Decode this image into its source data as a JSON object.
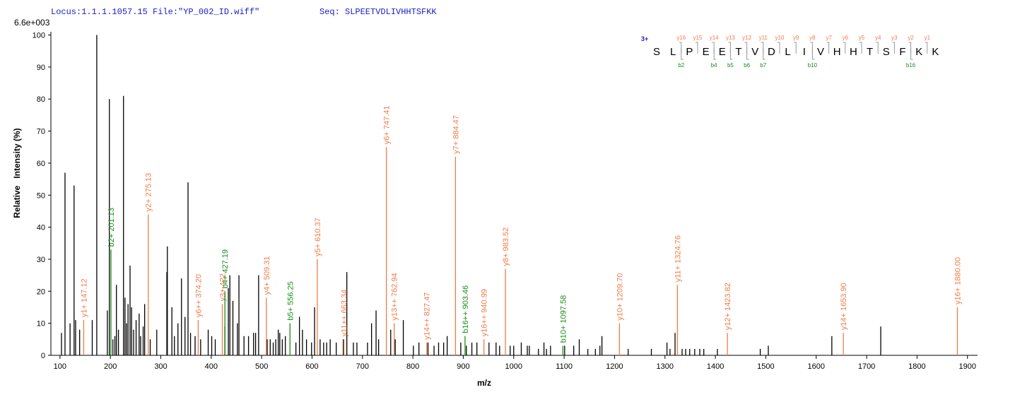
{
  "chart_data": {
    "type": "spectrum",
    "header": {
      "locus": "Locus:1.1.1.1057.15 File:\"YP_002_ID.wiff\"",
      "seq": "Seq: SLPEETVDLIVHHTSFKK",
      "scale": "6.6e+003"
    },
    "ylabel": "Relative   Intensity (%)",
    "xlabel": "m/z",
    "xlim": [
      82,
      1920
    ],
    "ylim": [
      0,
      101
    ],
    "xticks": [
      100,
      200,
      300,
      400,
      500,
      600,
      700,
      800,
      900,
      1000,
      1100,
      1200,
      1300,
      1400,
      1500,
      1600,
      1700,
      1800,
      1900
    ],
    "yticks": [
      0,
      10,
      20,
      30,
      40,
      50,
      60,
      70,
      80,
      90,
      100
    ],
    "series": [
      {
        "color": "#000000",
        "x": [
          103,
          110,
          120,
          128,
          131,
          139,
          164,
          173,
          194,
          198,
          205,
          209,
          212,
          216,
          226,
          229,
          232,
          235,
          239,
          242,
          246,
          251,
          257,
          260,
          265,
          268,
          279,
          292,
          312,
          313,
          322,
          327,
          334,
          341,
          348,
          354,
          359,
          368,
          379,
          394,
          401,
          408,
          427,
          434,
          437,
          443,
          452,
          455,
          465,
          474,
          484,
          488,
          494,
          511,
          517,
          523,
          528,
          533,
          536,
          541,
          547,
          568,
          575,
          581,
          589,
          599,
          605,
          616,
          623,
          629,
          636,
          648,
          662,
          669,
          682,
          689,
          710,
          718,
          727,
          732,
          756,
          765,
          781,
          801,
          812,
          830,
          842,
          851,
          861,
          868,
          895,
          906,
          917,
          927,
          951,
          965,
          972,
          993,
          1000,
          1015,
          1027,
          1031,
          1049,
          1060,
          1065,
          1073,
          1101,
          1119,
          1130,
          1147,
          1162,
          1171,
          1175,
          1227,
          1273,
          1304,
          1310,
          1320,
          1334,
          1341,
          1349,
          1359,
          1369,
          1377,
          1404,
          1489,
          1505,
          1631,
          1728
        ],
        "values": [
          7,
          57,
          10,
          53,
          11,
          8,
          11,
          100,
          14,
          80,
          5,
          6,
          22,
          8,
          81,
          18,
          10,
          16,
          28,
          15,
          8,
          11,
          13,
          6,
          9,
          16,
          5,
          8,
          26,
          34,
          15,
          6,
          10,
          24,
          12,
          54,
          7,
          6,
          5,
          8,
          6,
          5,
          9,
          21,
          25,
          17,
          10,
          25,
          6,
          6,
          7,
          7,
          25,
          5,
          5,
          4,
          5,
          8,
          7,
          5,
          6,
          4,
          12,
          8,
          5,
          4,
          15,
          5,
          4,
          4,
          5,
          4,
          5,
          26,
          4,
          4,
          4,
          10,
          14,
          5,
          8,
          5,
          11,
          3,
          4,
          4,
          3,
          4,
          4,
          6,
          4,
          3,
          4,
          4,
          4,
          4,
          3,
          3,
          3,
          4,
          3,
          3,
          2,
          4,
          2,
          3,
          3,
          3,
          5,
          2,
          2,
          3,
          6,
          2,
          2,
          4,
          2,
          7,
          2,
          2,
          2,
          2,
          2,
          2,
          2,
          2,
          3,
          6,
          9
        ]
      }
    ],
    "annotations": [
      {
        "text": "y1+ 147.12",
        "x": 147.12,
        "y": 11,
        "color": "#f07c4a"
      },
      {
        "text": "b2+ 201.13",
        "x": 201.13,
        "y": 33,
        "color": "#1a8c1a"
      },
      {
        "text": "y2+ 275.13",
        "x": 275.13,
        "y": 44,
        "color": "#f07c4a"
      },
      {
        "text": "y6++ 374.20",
        "x": 374.2,
        "y": 11,
        "color": "#f07c4a"
      },
      {
        "text": "y3+ 422",
        "x": 422,
        "y": 16,
        "color": "#f07c4a"
      },
      {
        "text": "b4+ 427.19",
        "x": 427.19,
        "y": 20,
        "color": "#1a8c1a"
      },
      {
        "text": "y4+ 509.31",
        "x": 509.31,
        "y": 18,
        "color": "#f07c4a"
      },
      {
        "text": "b5+ 556.25",
        "x": 556.25,
        "y": 10,
        "color": "#1a8c1a"
      },
      {
        "text": "y5+ 610.37",
        "x": 610.37,
        "y": 30,
        "color": "#f07c4a"
      },
      {
        "text": "y11++ 663.34",
        "x": 663.34,
        "y": 5,
        "color": "#f07c4a"
      },
      {
        "text": "y6+ 747.41",
        "x": 747.41,
        "y": 65,
        "color": "#f07c4a"
      },
      {
        "text": "y13++ 762.94",
        "x": 762.94,
        "y": 10,
        "color": "#f07c4a"
      },
      {
        "text": "y14++ 827.47",
        "x": 827.47,
        "y": 4,
        "color": "#f07c4a"
      },
      {
        "text": "y7+ 884.47",
        "x": 884.47,
        "y": 62,
        "color": "#f07c4a"
      },
      {
        "text": "b16++ 903.46",
        "x": 903.46,
        "y": 6,
        "color": "#1a8c1a"
      },
      {
        "text": "y16++ 940.99",
        "x": 940.99,
        "y": 5,
        "color": "#f07c4a"
      },
      {
        "text": "y8+ 983.52",
        "x": 983.52,
        "y": 27,
        "color": "#f07c4a"
      },
      {
        "text": "b10+ 1097.58",
        "x": 1097.58,
        "y": 3,
        "color": "#1a8c1a"
      },
      {
        "text": "y10+ 1209.70",
        "x": 1209.7,
        "y": 10,
        "color": "#f07c4a"
      },
      {
        "text": "y11+ 1324.76",
        "x": 1324.76,
        "y": 22,
        "color": "#f07c4a"
      },
      {
        "text": "y12+ 1423.82",
        "x": 1423.82,
        "y": 7,
        "color": "#f07c4a"
      },
      {
        "text": "y14+ 1653.90",
        "x": 1653.9,
        "y": 7,
        "color": "#f07c4a"
      },
      {
        "text": "y16+ 1880.00",
        "x": 1880.0,
        "y": 15,
        "color": "#f07c4a"
      }
    ],
    "sequence": {
      "charge": "3+",
      "residues": [
        "S",
        "L",
        "P",
        "E",
        "E",
        "T",
        "V",
        "D",
        "L",
        "I",
        "V",
        "H",
        "H",
        "T",
        "S",
        "F",
        "K",
        "K"
      ],
      "y_ions": [
        "y16",
        "y15",
        "y14",
        "y13",
        "y12",
        "y11",
        "y10",
        "y9",
        "y8",
        "y7",
        "y6",
        "y5",
        "y4",
        "y3",
        "y2",
        "y1"
      ],
      "b_ions": [
        "b2",
        null,
        "b4",
        "b5",
        "b6",
        "b7",
        null,
        null,
        "b10",
        null,
        null,
        null,
        null,
        null,
        "b16",
        null
      ]
    }
  }
}
